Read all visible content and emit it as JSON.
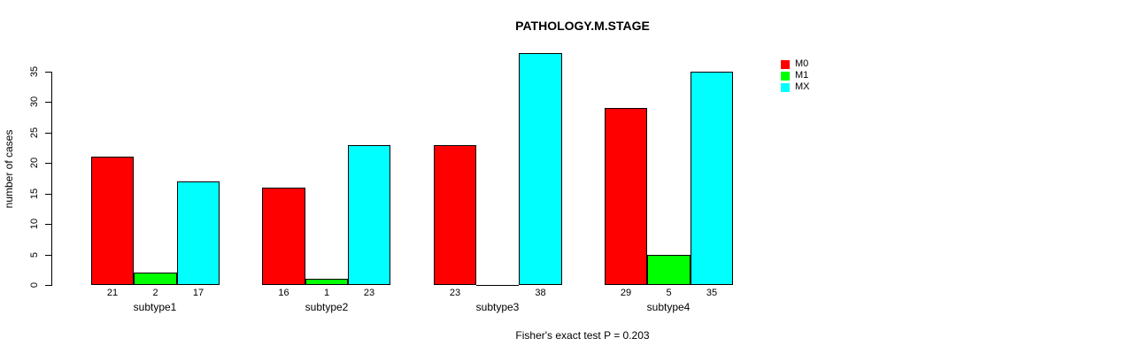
{
  "chart_data": {
    "type": "bar",
    "title": "PATHOLOGY.M.STAGE",
    "ylabel": "number of cases",
    "xlabel": "",
    "categories": [
      "subtype1",
      "subtype2",
      "subtype3",
      "subtype4"
    ],
    "series": [
      {
        "name": "M0",
        "color": "#FF0000",
        "values": [
          21,
          16,
          23,
          29
        ]
      },
      {
        "name": "M1",
        "color": "#00FF00",
        "values": [
          2,
          1,
          0,
          5
        ]
      },
      {
        "name": "MX",
        "color": "#00FFFF",
        "values": [
          17,
          23,
          38,
          35
        ]
      }
    ],
    "bar_labels": [
      [
        "21",
        "2",
        "17"
      ],
      [
        "16",
        "1",
        "23"
      ],
      [
        "23",
        "",
        "38"
      ],
      [
        "29",
        "5",
        "35"
      ]
    ],
    "yticks": [
      0,
      5,
      10,
      15,
      20,
      25,
      30,
      35
    ],
    "ylim": [
      0,
      38
    ],
    "grid": false,
    "legend_position": "top-right",
    "annotation": "Fisher's exact test P = 0.203"
  }
}
